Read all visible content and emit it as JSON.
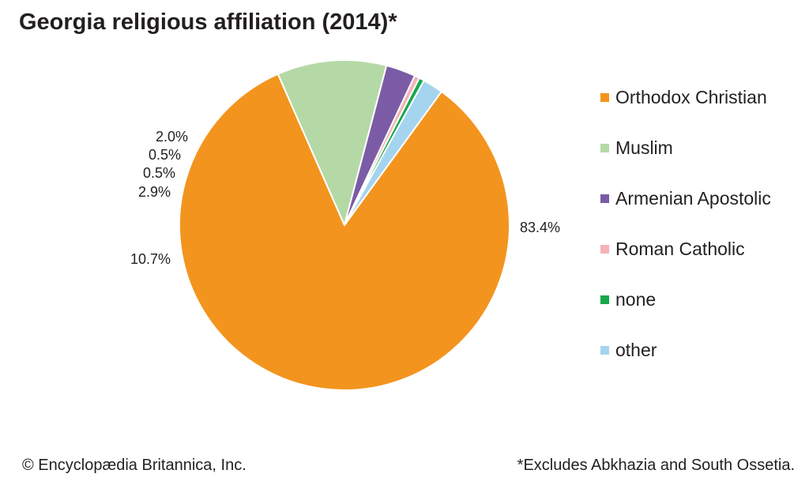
{
  "chart_data": {
    "type": "pie",
    "title": "Georgia religious affiliation (2014)*",
    "slices": [
      {
        "label": "Orthodox Christian",
        "value": 83.4,
        "value_label": "83.4%",
        "color": "#f3941e"
      },
      {
        "label": "Muslim",
        "value": 10.7,
        "value_label": "10.7%",
        "color": "#b5d9a6"
      },
      {
        "label": "Armenian Apostolic",
        "value": 2.9,
        "value_label": "2.9%",
        "color": "#7b5ba6"
      },
      {
        "label": "Roman Catholic",
        "value": 0.5,
        "value_label": "0.5%",
        "color": "#f4b3b5"
      },
      {
        "label": "none",
        "value": 0.5,
        "value_label": "0.5%",
        "color": "#17a84b"
      },
      {
        "label": "other",
        "value": 2.0,
        "value_label": "2.0%",
        "color": "#a5d4ef"
      }
    ],
    "legend_position": "right"
  },
  "footer": {
    "copyright": "© Encyclopædia Britannica, Inc.",
    "note": "*Excludes Abkhazia and South Ossetia."
  }
}
